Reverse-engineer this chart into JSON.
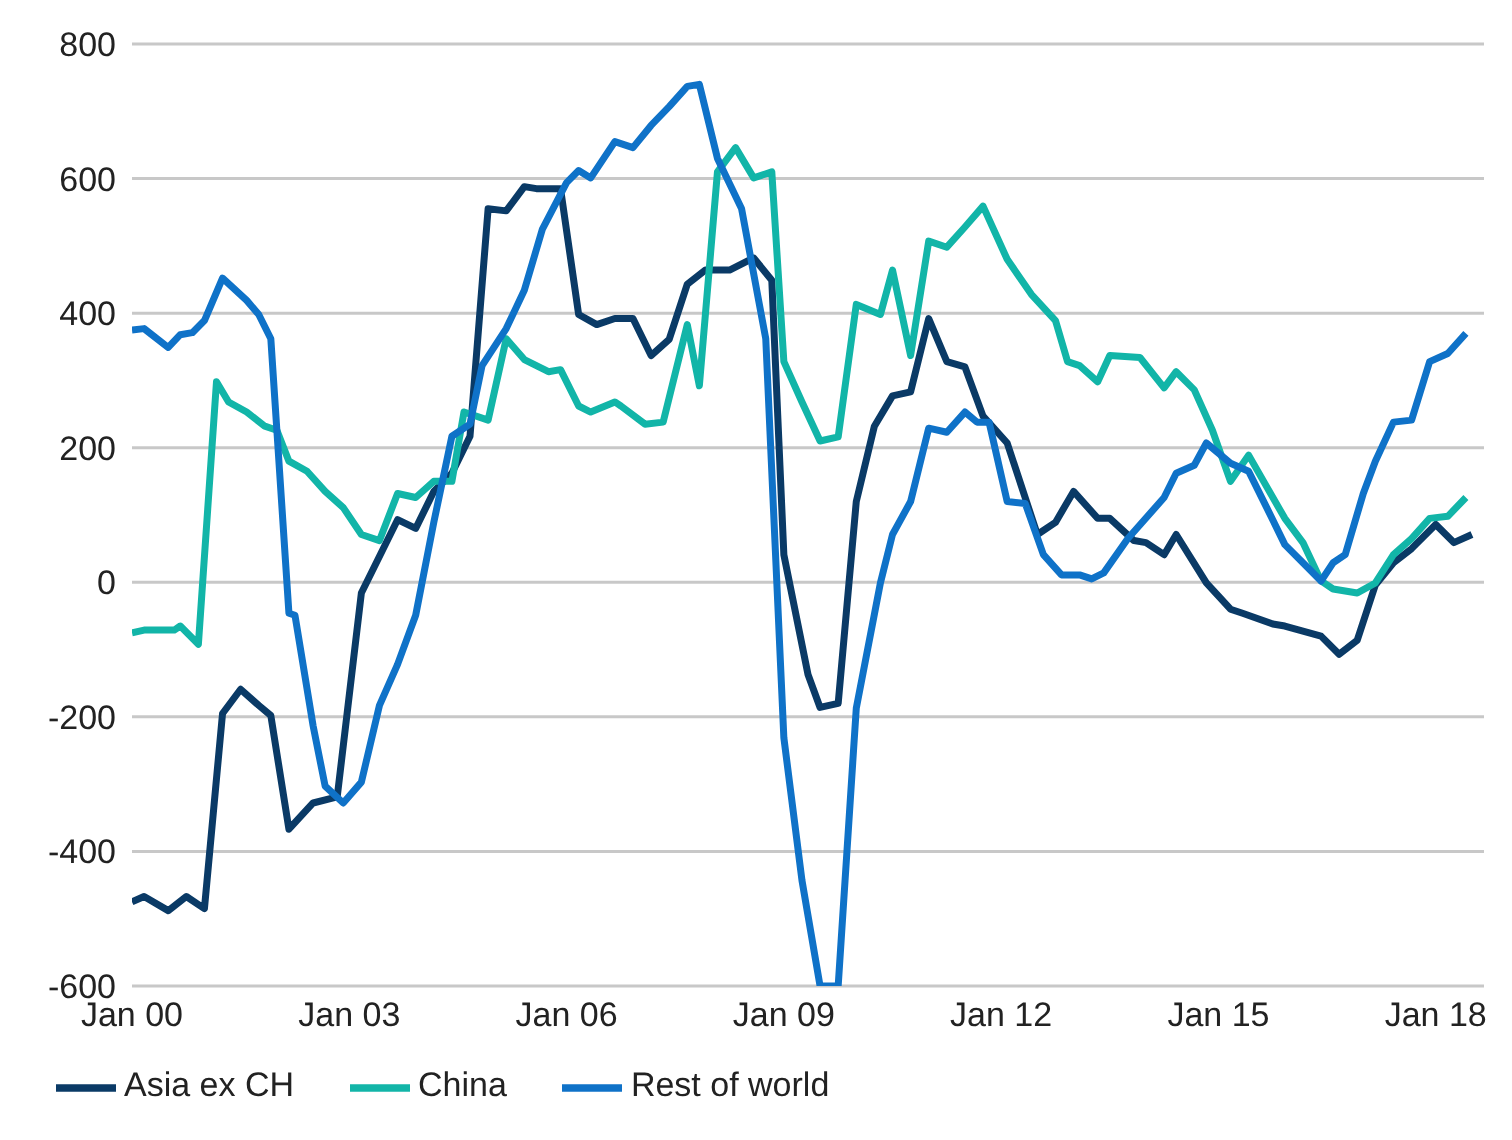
{
  "chart_data": {
    "type": "line",
    "xlim": [
      "2000-01",
      "2018-09"
    ],
    "xticks": [
      {
        "value": "2000-01",
        "label": "Jan 00"
      },
      {
        "value": "2003-01",
        "label": "Jan 03"
      },
      {
        "value": "2006-01",
        "label": "Jan 06"
      },
      {
        "value": "2009-01",
        "label": "Jan 09"
      },
      {
        "value": "2012-01",
        "label": "Jan 12"
      },
      {
        "value": "2015-01",
        "label": "Jan 15"
      },
      {
        "value": "2018-01",
        "label": "Jan 18"
      }
    ],
    "ylim": [
      -600,
      800
    ],
    "yticks": [
      -600,
      -400,
      -200,
      0,
      200,
      400,
      600,
      800
    ],
    "grid": "y",
    "legend": "bottom left",
    "marker": "none",
    "line_style": "solid",
    "series": [
      {
        "name": "Asia ex CH",
        "color": "#0a3a66",
        "x": [
          "2000-01",
          "2000-03",
          "2000-07",
          "2000-10",
          "2001-01",
          "2001-04",
          "2001-07",
          "2001-10",
          "2001-12",
          "2002-03",
          "2002-07",
          "2002-11",
          "2003-03",
          "2003-09",
          "2003-12",
          "2004-03",
          "2004-06",
          "2004-09",
          "2004-12",
          "2005-03",
          "2005-06",
          "2005-08",
          "2005-12",
          "2006-03",
          "2006-06",
          "2006-09",
          "2006-12",
          "2007-03",
          "2007-06",
          "2007-09",
          "2007-12",
          "2008-04",
          "2008-08",
          "2008-11",
          "2009-01",
          "2009-05",
          "2009-07",
          "2009-10",
          "2010-01",
          "2010-04",
          "2010-07",
          "2010-10",
          "2011-01",
          "2011-04",
          "2011-07",
          "2011-10",
          "2012-02",
          "2012-07",
          "2012-10",
          "2013-01",
          "2013-05",
          "2013-07",
          "2013-11",
          "2014-01",
          "2014-04",
          "2014-06",
          "2014-11",
          "2015-03",
          "2015-05",
          "2015-10",
          "2015-12",
          "2016-06",
          "2016-09",
          "2016-12",
          "2017-03",
          "2017-06",
          "2017-09",
          "2018-01",
          "2018-04",
          "2018-07"
        ],
        "values": [
          -475,
          -467,
          -488,
          -467,
          -485,
          -195,
          -159,
          -183,
          -198,
          -367,
          -328,
          -319,
          -16,
          93,
          80,
          135,
          162,
          217,
          555,
          552,
          588,
          585,
          585,
          398,
          383,
          392,
          392,
          337,
          361,
          443,
          464,
          464,
          482,
          449,
          41,
          -137,
          -186,
          -180,
          120,
          232,
          277,
          283,
          392,
          328,
          320,
          247,
          207,
          71,
          89,
          135,
          95,
          95,
          62,
          59,
          41,
          71,
          -1,
          -40,
          -46,
          -62,
          -65,
          -80,
          -107,
          -86,
          -4,
          29,
          50,
          86,
          59,
          71
        ]
      },
      {
        "name": "China",
        "color": "#12b5a8",
        "x": [
          "2000-01",
          "2000-03",
          "2000-08",
          "2000-09",
          "2000-12",
          "2001-03",
          "2001-05",
          "2001-08",
          "2001-11",
          "2002-01",
          "2002-03",
          "2002-06",
          "2002-09",
          "2002-12",
          "2003-03",
          "2003-06",
          "2003-09",
          "2003-12",
          "2004-03",
          "2004-06",
          "2004-08",
          "2004-12",
          "2005-03",
          "2005-06",
          "2005-10",
          "2005-12",
          "2006-03",
          "2006-05",
          "2006-09",
          "2006-10",
          "2007-02",
          "2007-05",
          "2007-09",
          "2007-11",
          "2008-02",
          "2008-05",
          "2008-08",
          "2008-11",
          "2009-01",
          "2009-04",
          "2009-07",
          "2009-10",
          "2010-01",
          "2010-05",
          "2010-07",
          "2010-10",
          "2011-01",
          "2011-04",
          "2011-07",
          "2011-10",
          "2012-02",
          "2012-06",
          "2012-10",
          "2012-12",
          "2013-02",
          "2013-05",
          "2013-07",
          "2013-12",
          "2014-04",
          "2014-06",
          "2014-09",
          "2014-12",
          "2015-03",
          "2015-06",
          "2015-12",
          "2016-03",
          "2016-06",
          "2016-08",
          "2016-12",
          "2017-03",
          "2017-06",
          "2017-09",
          "2017-12",
          "2018-03",
          "2018-06"
        ],
        "values": [
          -75,
          -71,
          -71,
          -65,
          -92,
          298,
          268,
          253,
          232,
          226,
          180,
          165,
          135,
          111,
          71,
          62,
          132,
          126,
          150,
          150,
          253,
          241,
          362,
          331,
          313,
          316,
          262,
          253,
          268,
          262,
          235,
          238,
          383,
          292,
          610,
          646,
          601,
          610,
          328,
          268,
          210,
          216,
          413,
          398,
          464,
          337,
          507,
          498,
          528,
          559,
          480,
          428,
          389,
          328,
          322,
          298,
          337,
          334,
          289,
          313,
          286,
          226,
          150,
          189,
          95,
          59,
          2,
          -10,
          -16,
          -1,
          41,
          65,
          95,
          98,
          126
        ]
      },
      {
        "name": "Rest of world",
        "color": "#0f72c8",
        "x": [
          "2000-01",
          "2000-03",
          "2000-07",
          "2000-09",
          "2000-11",
          "2001-01",
          "2001-04",
          "2001-08",
          "2001-10",
          "2001-12",
          "2002-03",
          "2002-04",
          "2002-07",
          "2002-09",
          "2002-12",
          "2003-03",
          "2003-06",
          "2003-09",
          "2003-12",
          "2004-03",
          "2004-06",
          "2004-09",
          "2004-11",
          "2005-03",
          "2005-06",
          "2005-09",
          "2006-01",
          "2006-03",
          "2006-05",
          "2006-09",
          "2006-12",
          "2007-03",
          "2007-06",
          "2007-09",
          "2007-11",
          "2008-02",
          "2008-06",
          "2008-10",
          "2009-01",
          "2009-04",
          "2009-07",
          "2009-10",
          "2010-01",
          "2010-05",
          "2010-07",
          "2010-10",
          "2011-01",
          "2011-04",
          "2011-07",
          "2011-09",
          "2011-11",
          "2012-02",
          "2012-05",
          "2012-08",
          "2012-11",
          "2013-02",
          "2013-04",
          "2013-06",
          "2013-10",
          "2014-04",
          "2014-06",
          "2014-09",
          "2014-11",
          "2015-03",
          "2015-06",
          "2015-09",
          "2015-12",
          "2016-03",
          "2016-06",
          "2016-08",
          "2016-10",
          "2017-01",
          "2017-03",
          "2017-06",
          "2017-09",
          "2017-12",
          "2018-03",
          "2018-06"
        ],
        "values": [
          375,
          377,
          349,
          368,
          371,
          389,
          452,
          419,
          398,
          362,
          -46,
          -49,
          -213,
          -303,
          -328,
          -297,
          -183,
          -122,
          -49,
          89,
          217,
          235,
          322,
          377,
          434,
          525,
          594,
          612,
          601,
          655,
          646,
          679,
          707,
          737,
          740,
          630,
          555,
          362,
          -231,
          -443,
          -600,
          -600,
          -187,
          -1,
          71,
          120,
          229,
          223,
          253,
          238,
          238,
          120,
          117,
          41,
          11,
          11,
          5,
          14,
          65,
          126,
          162,
          174,
          207,
          177,
          165,
          111,
          56,
          29,
          2,
          29,
          41,
          132,
          180,
          238,
          241,
          328,
          340,
          370
        ]
      }
    ]
  }
}
